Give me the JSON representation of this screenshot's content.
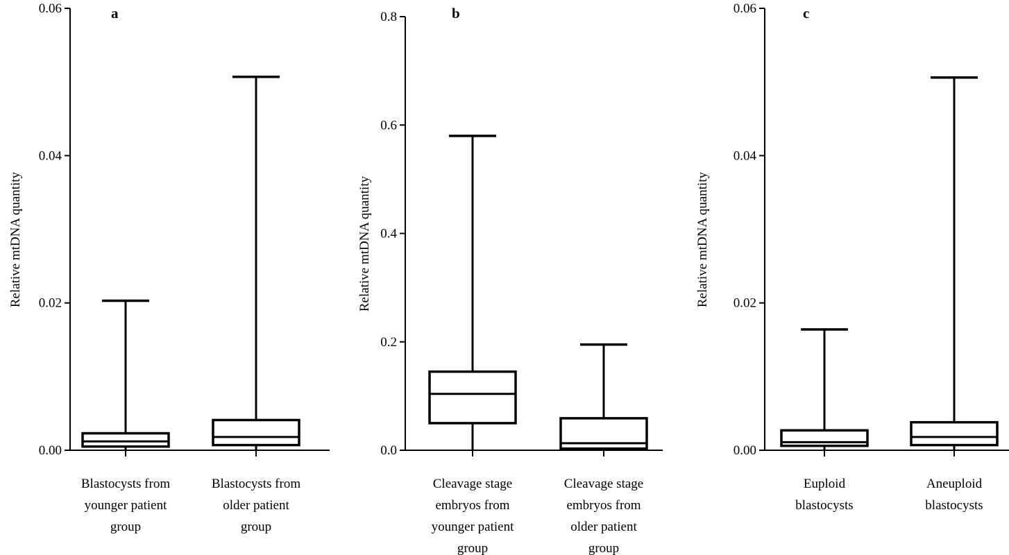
{
  "chart_data": [
    {
      "type": "box",
      "panel": "a",
      "ylabel": "Relative  mtDNA quantity",
      "ylim": [
        0,
        0.06
      ],
      "yticks": [
        "0.00",
        "0.02",
        "0.04",
        "0.06"
      ],
      "categories": [
        [
          "Blastocysts  from",
          "younger patient",
          "group"
        ],
        [
          "Blastocysts  from",
          "older patient",
          "group"
        ]
      ],
      "boxes": [
        {
          "min": 0.0,
          "q1": 0.0005,
          "median": 0.0012,
          "q3": 0.0023,
          "max": 0.0203
        },
        {
          "min": 0.0,
          "q1": 0.0007,
          "median": 0.0018,
          "q3": 0.0041,
          "max": 0.0507
        }
      ]
    },
    {
      "type": "box",
      "panel": "b",
      "ylabel": "Relative  mtDNA quantity",
      "ylim": [
        0,
        0.8
      ],
      "yticks": [
        "0.0",
        "0.2",
        "0.4",
        "0.6",
        "0.8"
      ],
      "categories": [
        [
          "Cleavage  stage",
          "embryos  from",
          "younger  patient",
          "group"
        ],
        [
          "Cleavage  stage",
          "embryos  from",
          "older patient",
          "group"
        ]
      ],
      "boxes": [
        {
          "min": 0.0,
          "q1": 0.05,
          "median": 0.104,
          "q3": 0.145,
          "max": 0.58
        },
        {
          "min": 0.0,
          "q1": 0.003,
          "median": 0.013,
          "q3": 0.059,
          "max": 0.195
        }
      ]
    },
    {
      "type": "box",
      "panel": "c",
      "ylabel": "Relative  mtDNA quantity",
      "ylim": [
        0,
        0.06
      ],
      "yticks": [
        "0.00",
        "0.02",
        "0.04",
        "0.06"
      ],
      "categories": [
        [
          "Euploid",
          "blastocysts"
        ],
        [
          "Aneuploid",
          "blastocysts"
        ]
      ],
      "boxes": [
        {
          "min": 0.0,
          "q1": 0.0006,
          "median": 0.0011,
          "q3": 0.0027,
          "max": 0.0164
        },
        {
          "min": 0.0,
          "q1": 0.0007,
          "median": 0.0018,
          "q3": 0.0038,
          "max": 0.0506
        }
      ]
    }
  ]
}
